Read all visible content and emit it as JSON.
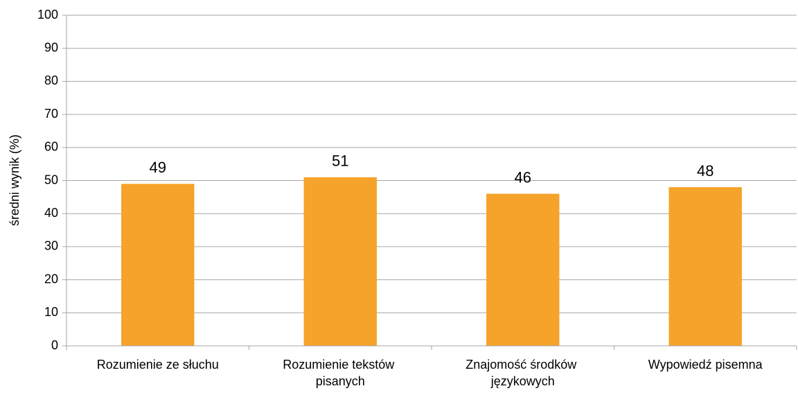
{
  "chart_data": {
    "type": "bar",
    "y_label": "średni wynik (%)",
    "categories": [
      "Rozumienie ze słuchu",
      "Rozumienie tekstów pisanych",
      "Znajomość środków językowych",
      "Wypowiedź pisemna"
    ],
    "values": [
      49,
      51,
      46,
      48
    ],
    "color": "#f5a32a",
    "ylim": [
      0,
      100
    ],
    "yticks": [
      0,
      10,
      20,
      30,
      40,
      50,
      60,
      70,
      80,
      90,
      100
    ],
    "grid": true
  }
}
